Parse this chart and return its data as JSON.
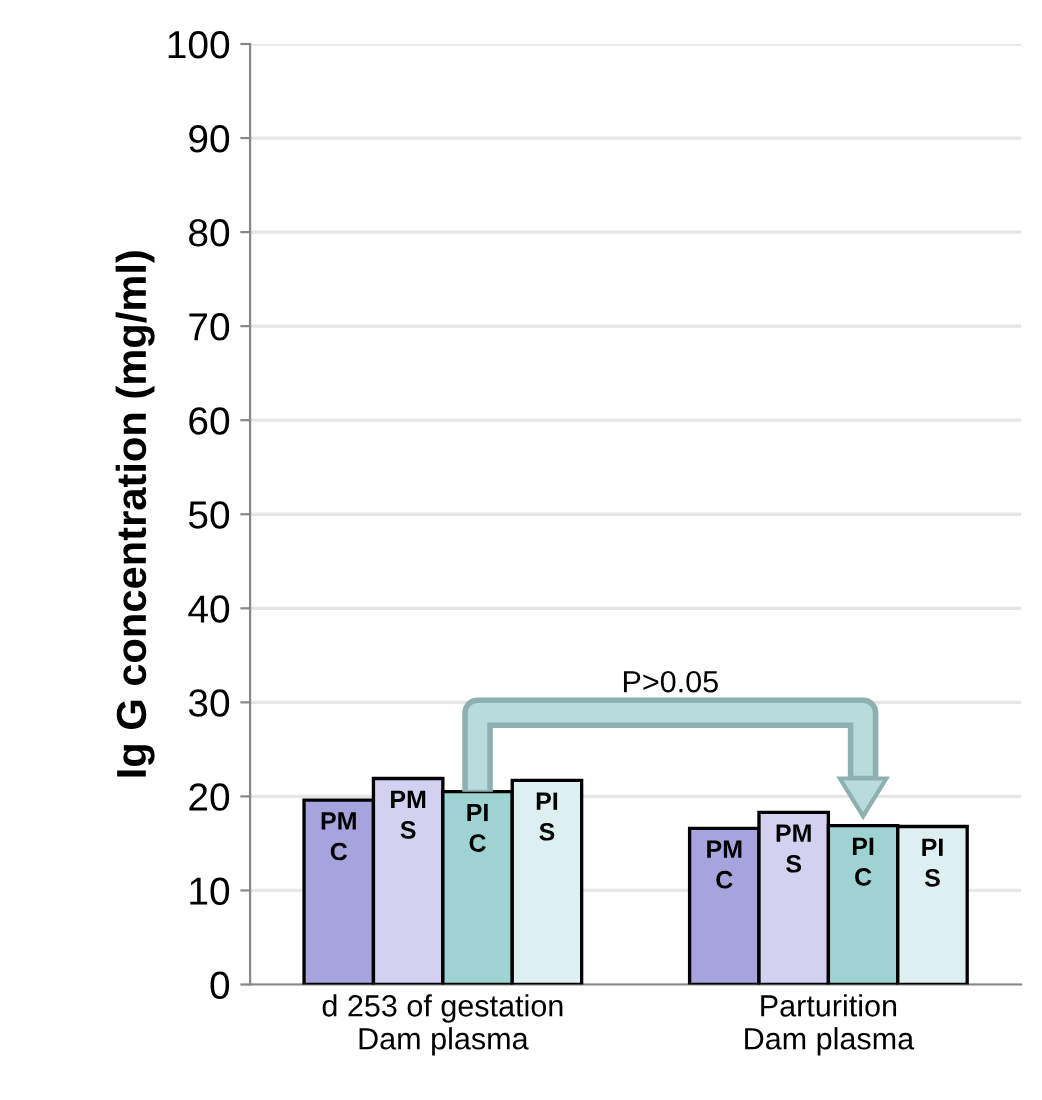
{
  "chart_data": {
    "type": "bar",
    "ylabel": "Ig G concentration (mg/ml)",
    "categories": [
      "d 253 of gestation\nDam plasma",
      "Parturition\nDam plasma"
    ],
    "series": [
      {
        "name": "PM C",
        "color": "#a7a3dc",
        "values": [
          19.6,
          16.6
        ]
      },
      {
        "name": "PM S",
        "color": "#d3d1f0",
        "values": [
          21.9,
          18.3
        ]
      },
      {
        "name": "PI C",
        "color": "#9fd3d3",
        "values": [
          20.5,
          16.9
        ]
      },
      {
        "name": "PI S",
        "color": "#ddeff0",
        "values": [
          21.7,
          16.8
        ]
      }
    ],
    "ylim": [
      0,
      100
    ],
    "yticks": [
      0,
      10,
      20,
      30,
      40,
      50,
      60,
      70,
      80,
      90,
      100
    ],
    "grid": "y",
    "legend": false,
    "annotations": [
      "P>0.05"
    ]
  }
}
